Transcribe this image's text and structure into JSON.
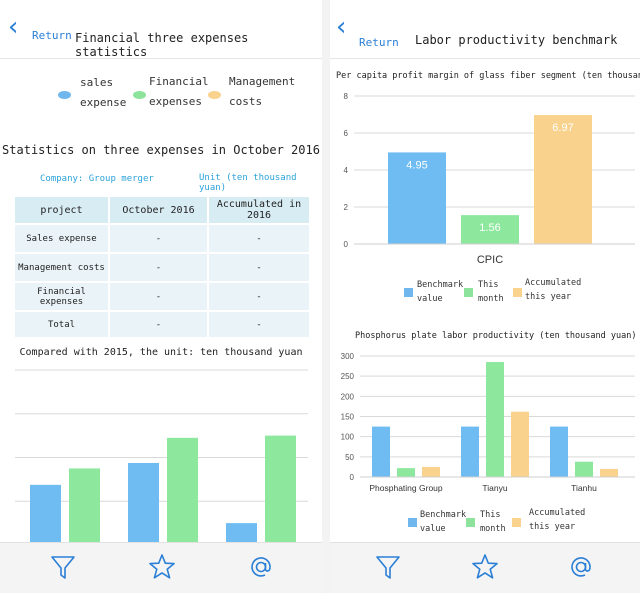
{
  "left": {
    "header": {
      "back_label": "Return",
      "title": "Financial three expenses statistics"
    },
    "legend": [
      {
        "line1": "sales",
        "line2": "expense",
        "color": "#6fb7ec"
      },
      {
        "line1": "Financial",
        "line2": "expenses",
        "color": "#8de39c"
      },
      {
        "line1": "Management",
        "line2": "costs",
        "color": "#f9d28d"
      }
    ],
    "stats_title": "Statistics on three expenses in October 2016",
    "company": "Company: Group merger",
    "unit": "Unit (ten thousand yuan)",
    "table": {
      "headers": [
        "project",
        "October 2016",
        "Accumulated in 2016"
      ],
      "rows": [
        [
          "Sales expense",
          "-",
          "-"
        ],
        [
          "Management costs",
          "-",
          "-"
        ],
        [
          "Financial expenses",
          "-",
          "-"
        ],
        [
          "Total",
          "-",
          "-"
        ]
      ]
    },
    "compare_title": "Compared with 2015, the unit: ten thousand yuan"
  },
  "right": {
    "header": {
      "back_label": "Return",
      "title": "Labor productivity benchmark"
    },
    "chart1_title": "Per capita profit margin of glass fiber segment (ten thousand yuan)",
    "chart2_title": "Phosphorus plate labor productivity (ten thousand yuan)",
    "legend": [
      {
        "line1": "Benchmark",
        "line2": "value",
        "color": "#6fb7ec"
      },
      {
        "line1": "This",
        "line2": "month",
        "color": "#8de39c"
      },
      {
        "line1": "Accumulated",
        "line2": "this year",
        "color": "#f9d28d"
      }
    ]
  },
  "icons": {
    "filter": "funnel-icon",
    "favorite": "star-icon",
    "mention": "at-sign-icon"
  },
  "chart_data": [
    {
      "type": "bar",
      "categories": [
        "",
        "",
        ""
      ],
      "series": [
        {
          "values": [
            55,
            75,
            20
          ]
        },
        {
          "values": [
            70,
            98,
            100
          ]
        }
      ],
      "ylim": [
        0,
        160
      ],
      "grid": true,
      "colors": [
        "#6fbcf2",
        "#8de89e"
      ]
    },
    {
      "type": "bar",
      "categories": [
        "CPIC"
      ],
      "series": [
        {
          "name": "Benchmark value",
          "values": [
            4.95
          ]
        },
        {
          "name": "This month",
          "values": [
            1.56
          ]
        },
        {
          "name": "Accumulated this year",
          "values": [
            6.97
          ]
        }
      ],
      "ylim": [
        0,
        8
      ],
      "yticks": [
        0,
        2,
        4,
        6,
        8
      ],
      "value_labels": [
        "4.95",
        "1.56",
        "6.97"
      ],
      "grid": true,
      "colors": [
        "#6fbcf2",
        "#8de89e",
        "#f9d28d"
      ]
    },
    {
      "type": "bar",
      "categories": [
        "Phosphating Group",
        "Tianyu",
        "Tianhu"
      ],
      "series": [
        {
          "name": "Benchmark value",
          "values": [
            125,
            125,
            125
          ]
        },
        {
          "name": "This month",
          "values": [
            22,
            285,
            38
          ]
        },
        {
          "name": "Accumulated this year",
          "values": [
            25,
            162,
            20
          ]
        }
      ],
      "ylim": [
        0,
        300
      ],
      "yticks": [
        0,
        50,
        100,
        150,
        200,
        250,
        300
      ],
      "grid": true,
      "colors": [
        "#6fbcf2",
        "#8de89e",
        "#f9d28d"
      ]
    }
  ]
}
